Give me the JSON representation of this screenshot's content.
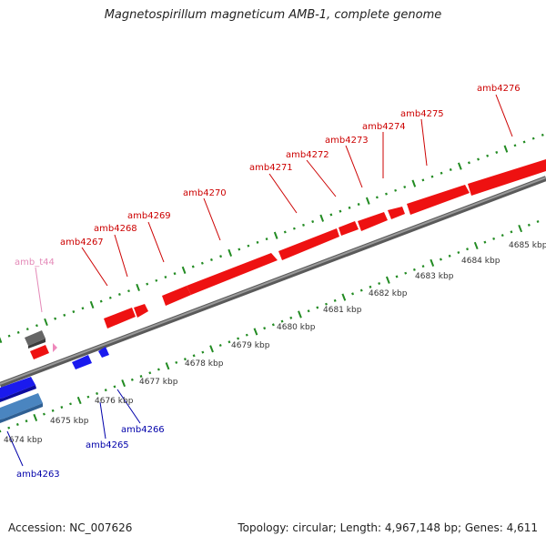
{
  "title": "Magnetospirillum magneticum AMB-1, complete genome",
  "footer": {
    "accession": "Accession: NC_007626",
    "summary": "Topology: circular; Length: 4,967,148 bp; Genes: 4,611"
  },
  "colors": {
    "forward_gene": "#ee1111",
    "reverse_gene": "#1a1aee",
    "reverse_gene_light": "#4a85c0",
    "other_gene": "#666666",
    "trna": "#ee88bb",
    "backbone": "#888888",
    "ticks": "#228b22",
    "forward_label": "#cc0000",
    "reverse_label": "#0000aa",
    "trna_label": "#e48ab8"
  },
  "kbp_labels": [
    "4674 kbp",
    "4675 kbp",
    "4676 kbp",
    "4677 kbp",
    "4678 kbp",
    "4679 kbp",
    "4680 kbp",
    "4681 kbp",
    "4682 kbp",
    "4683 kbp",
    "4684 kbp",
    "4685 kbp"
  ],
  "gene_labels": {
    "amb4263": "amb4263",
    "amb4265": "amb4265",
    "amb4266": "amb4266",
    "amb_t44": "amb_t44",
    "amb4267": "amb4267",
    "amb4268": "amb4268",
    "amb4269": "amb4269",
    "amb4270": "amb4270",
    "amb4271": "amb4271",
    "amb4272": "amb4272",
    "amb4273": "amb4273",
    "amb4274": "amb4274",
    "amb4275": "amb4275",
    "amb4276": "amb4276"
  }
}
